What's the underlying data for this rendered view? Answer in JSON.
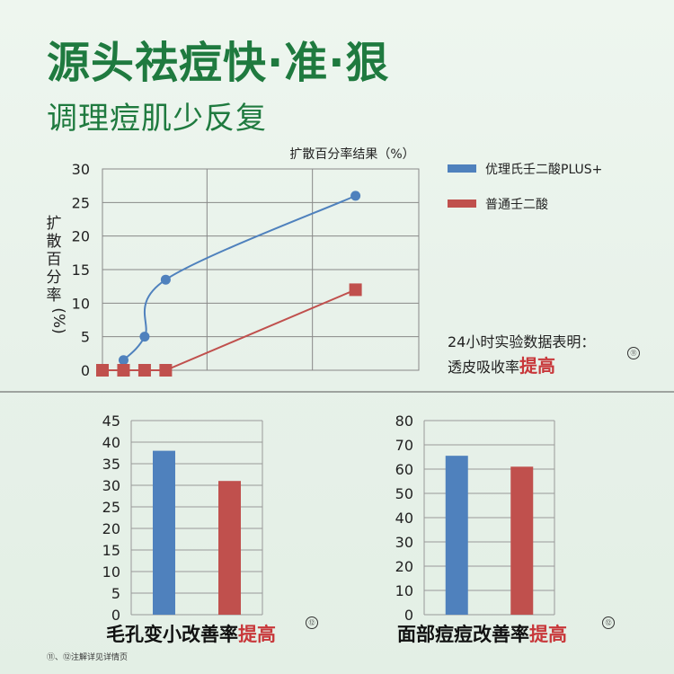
{
  "headline": "源头祛痘快·准·狠",
  "subline": "调理痘肌少反复",
  "conclusion": {
    "line1": "24小时实验数据表明：",
    "line2_prefix": "透皮吸收率",
    "line2_highlight": "提高",
    "ref": "⑪"
  },
  "footnote": "⑪、⑫注解详见详情页",
  "colors": {
    "blue": "#4f81bd",
    "red": "#c0504d",
    "green_title": "#1f7a3f",
    "highlight": "#c8373a"
  },
  "chart_data": [
    {
      "type": "line",
      "title": "扩散百分率结果（%）",
      "ylabel": "扩散百分率（%）",
      "xlabel": "",
      "ylim": [
        0,
        30
      ],
      "yticks": [
        0,
        5,
        10,
        15,
        20,
        25,
        30
      ],
      "xlim": [
        0,
        30
      ],
      "grid": true,
      "legend_position": "right",
      "series": [
        {
          "name": "优理氏壬二酸PLUS+",
          "color": "#4f81bd",
          "marker": "circle",
          "x": [
            2,
            4,
            6,
            24
          ],
          "y": [
            1.5,
            5,
            13.5,
            26
          ]
        },
        {
          "name": "普通壬二酸",
          "color": "#c0504d",
          "marker": "square",
          "x": [
            0,
            2,
            4,
            6,
            24
          ],
          "y": [
            0,
            0,
            0,
            0,
            12
          ]
        }
      ]
    },
    {
      "type": "bar",
      "title": "毛孔变小改善率",
      "title_highlight": "提高",
      "ref": "⑫",
      "categories": [
        "",
        ""
      ],
      "series_colors": [
        "#4f81bd",
        "#c0504d"
      ],
      "values": [
        38,
        31
      ],
      "ylim": [
        0,
        45
      ],
      "yticks": [
        0,
        5,
        10,
        15,
        20,
        25,
        30,
        35,
        40,
        45
      ],
      "grid": true
    },
    {
      "type": "bar",
      "title": "面部痘痘改善率",
      "title_highlight": "提高",
      "ref": "⑫",
      "categories": [
        "",
        ""
      ],
      "series_colors": [
        "#4f81bd",
        "#c0504d"
      ],
      "values": [
        65.5,
        61
      ],
      "ylim": [
        0,
        80
      ],
      "yticks": [
        0,
        10,
        20,
        30,
        40,
        50,
        60,
        70,
        80
      ],
      "grid": true
    }
  ]
}
